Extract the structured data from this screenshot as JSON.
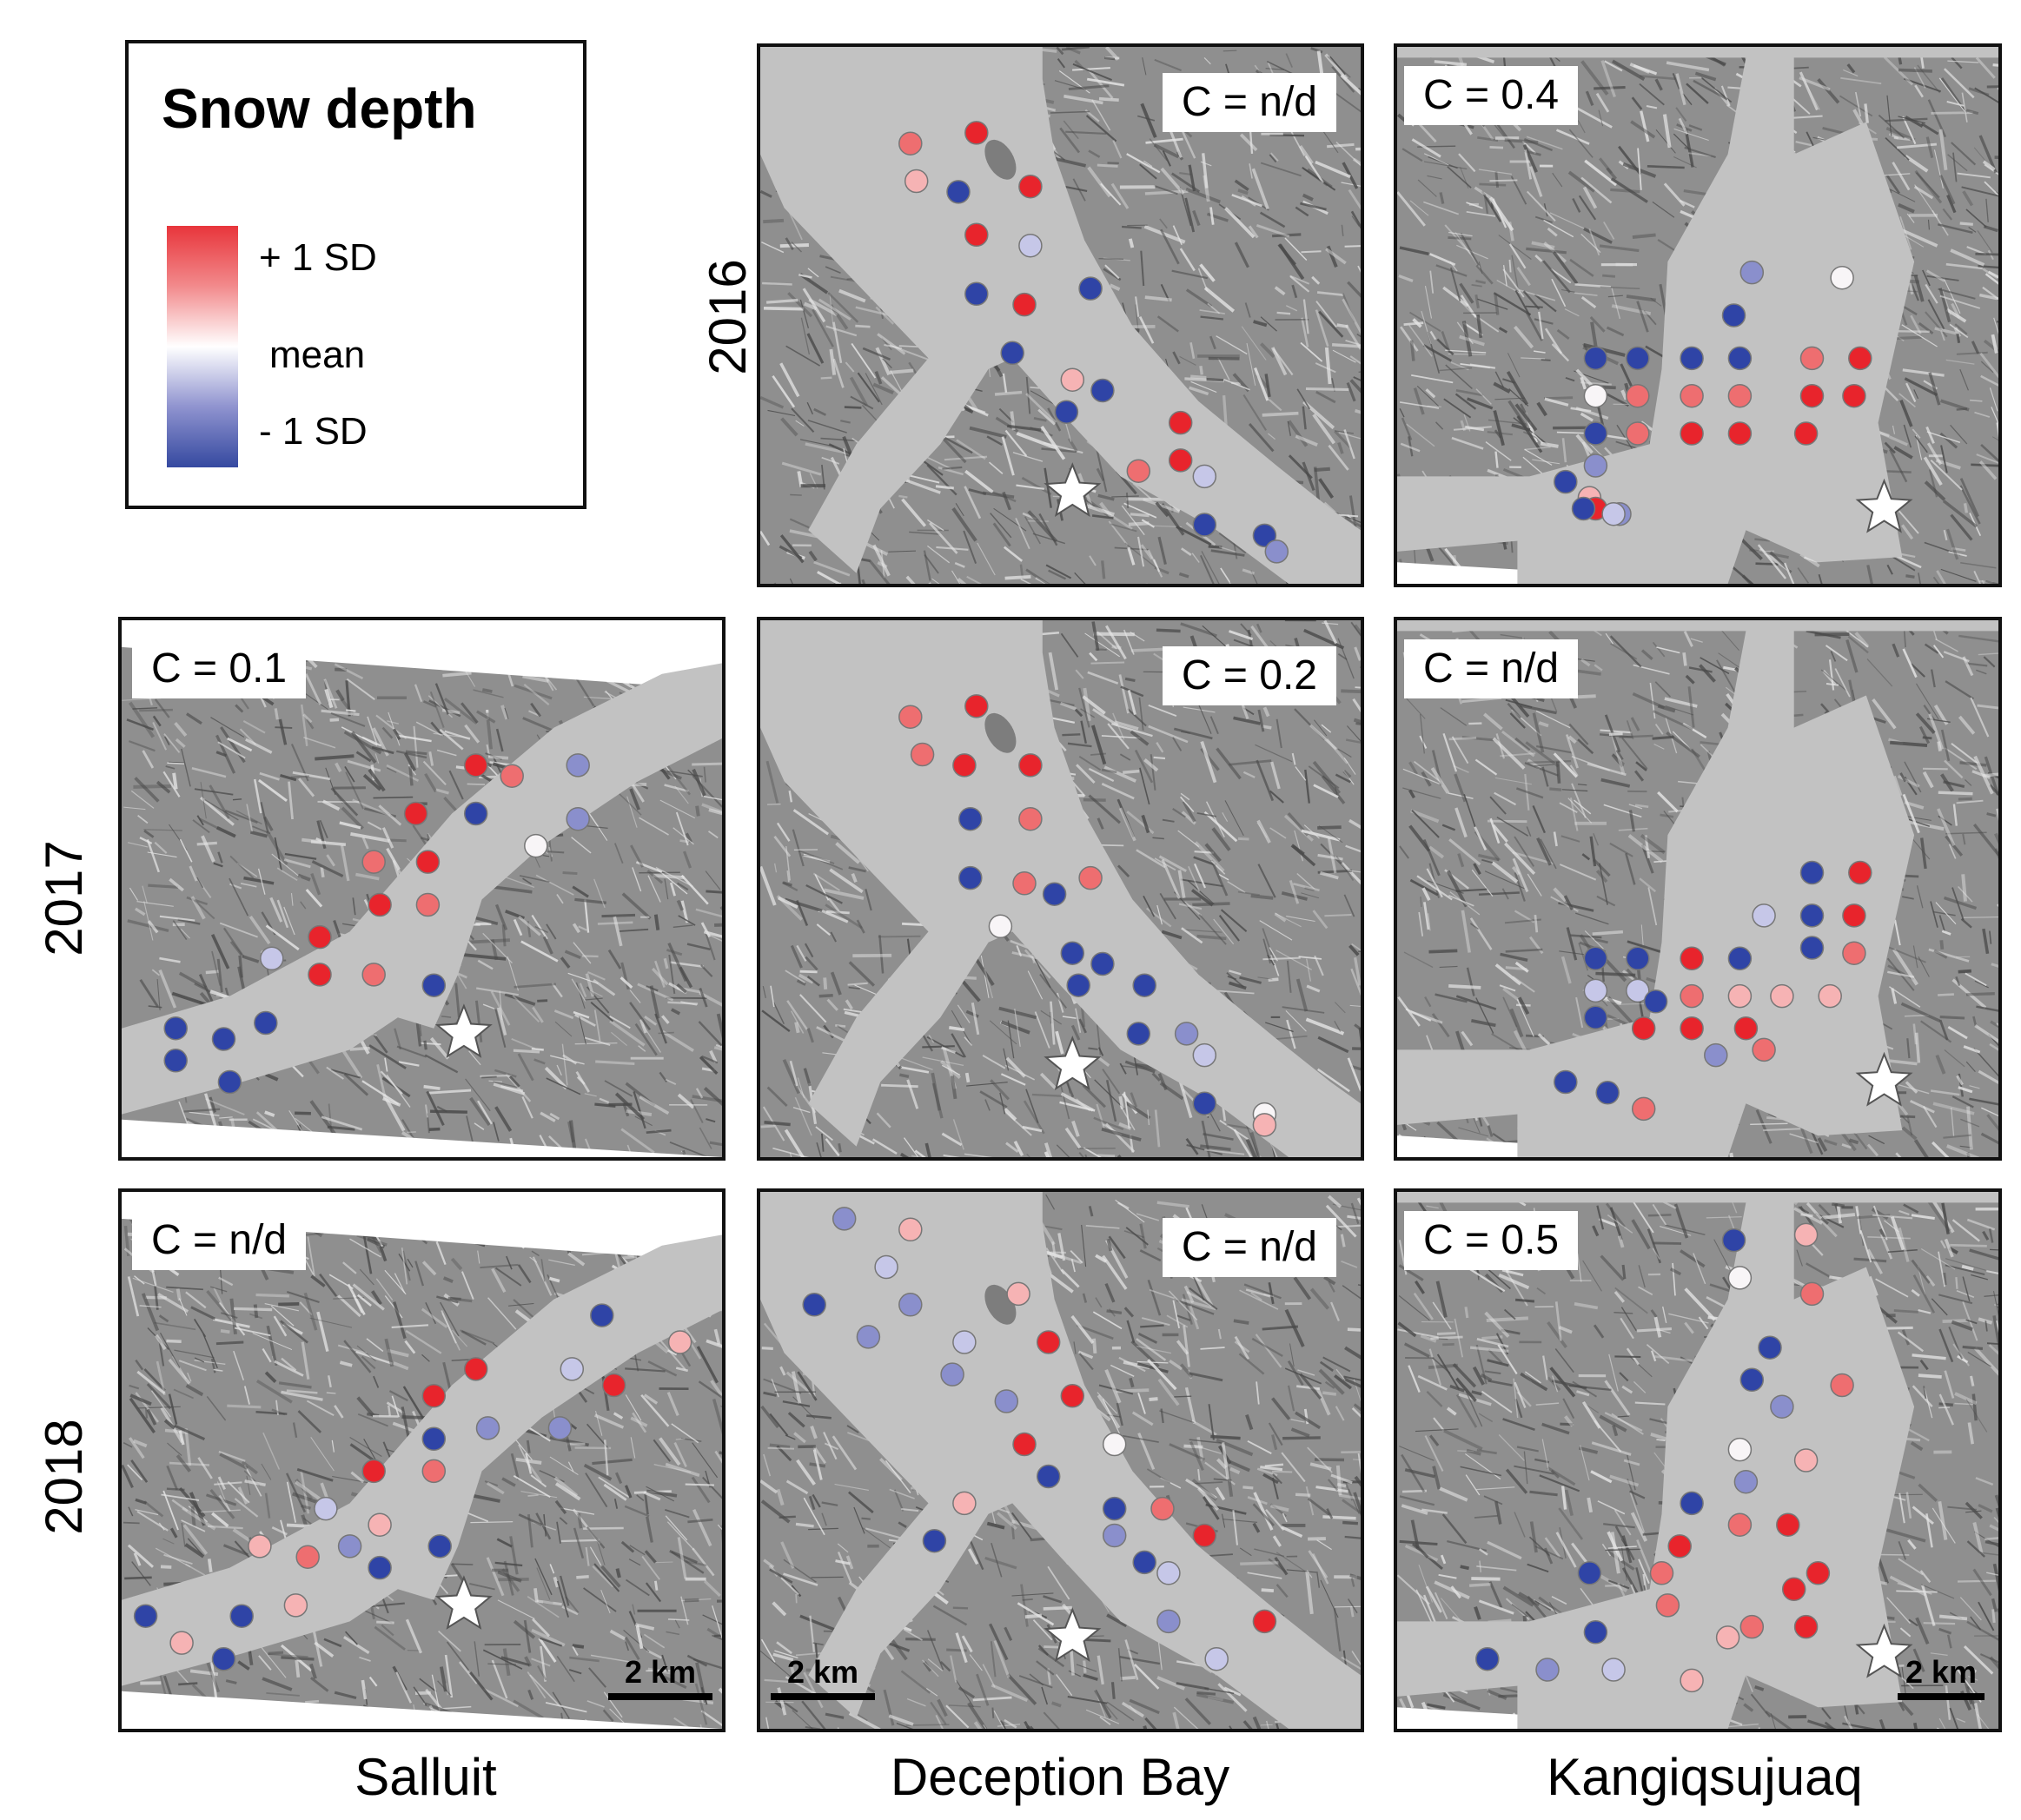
{
  "legend": {
    "title": "Snow depth",
    "plus_label": "+ 1 SD",
    "mean_label": "mean",
    "minus_label": "- 1 SD",
    "colors": {
      "high": "#e8353b",
      "mean": "#ffffff",
      "low": "#3549a0"
    }
  },
  "rows": [
    "2016",
    "2017",
    "2018"
  ],
  "columns": [
    "Salluit",
    "Deception Bay",
    "Kangiqsujuaq"
  ],
  "scale_label": "2 km",
  "marker_icon": "star-icon",
  "palette": {
    "land_background": "#c2c2c2",
    "terrain_dark": "#4a4a4a",
    "terrain_light": "#e4e4e4",
    "star_fill": "#ffffff",
    "dot_stroke": "#777777"
  },
  "panels": [
    {
      "id": "deception-2016",
      "year": "2016",
      "site": "Deception Bay",
      "c_label": "C = n/d",
      "scale": false
    },
    {
      "id": "kangiqsujuaq-2016",
      "year": "2016",
      "site": "Kangiqsujuaq",
      "c_label": "C = 0.4",
      "scale": false
    },
    {
      "id": "salluit-2017",
      "year": "2017",
      "site": "Salluit",
      "c_label": "C = 0.1",
      "scale": false
    },
    {
      "id": "deception-2017",
      "year": "2017",
      "site": "Deception Bay",
      "c_label": "C = 0.2",
      "scale": false
    },
    {
      "id": "kangiqsujuaq-2017",
      "year": "2017",
      "site": "Kangiqsujuaq",
      "c_label": "C = n/d",
      "scale": false
    },
    {
      "id": "salluit-2018",
      "year": "2018",
      "site": "Salluit",
      "c_label": "C = n/d",
      "scale": true
    },
    {
      "id": "deception-2018",
      "year": "2018",
      "site": "Deception Bay",
      "c_label": "C = n/d",
      "scale": true
    },
    {
      "id": "kangiqsujuaq-2018",
      "year": "2018",
      "site": "Kangiqsujuaq",
      "c_label": "C = 0.5",
      "scale": true
    }
  ]
}
